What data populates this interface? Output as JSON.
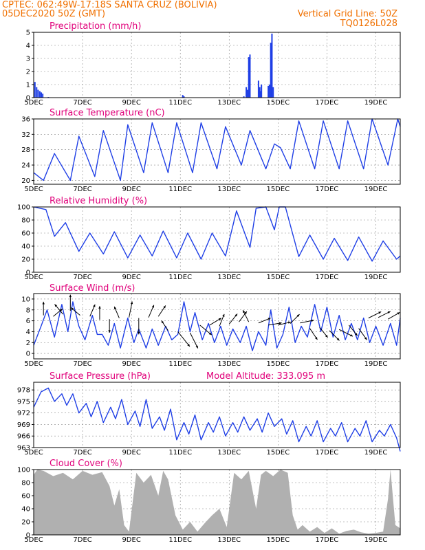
{
  "header": {
    "line1_left": "CPTEC:   062:49W-17:18S  SANTA CRUZ (BOLIVIA)",
    "line2_left": "05DEC2020 50Z (GMT)",
    "line2_right": "Vertical Grid Line: 50Z",
    "line3_right": "TQ0126L028"
  },
  "colors": {
    "header": "#f07000",
    "panel_title": "#e0007a",
    "series": "#1f3fe6",
    "cloud": "#b0b0b0",
    "arrow": "#000000"
  },
  "x_axis": {
    "labels": [
      "5DEC",
      "7DEC",
      "9DEC",
      "11DEC",
      "13DEC",
      "15DEC",
      "17DEC",
      "19DEC"
    ],
    "label_days": [
      0,
      2,
      4,
      6,
      8,
      10,
      12,
      14
    ],
    "range_days": [
      0,
      15
    ]
  },
  "chart_data": [
    {
      "id": "precip",
      "type": "bar",
      "title": "Precipitation (mm/h)",
      "ylim": [
        0,
        5
      ],
      "yticks": [
        0,
        1,
        2,
        3,
        4,
        5
      ],
      "x": [
        0.05,
        0.12,
        0.18,
        0.25,
        0.31,
        0.37,
        0.6,
        6.1,
        6.15,
        8.6,
        8.7,
        8.75,
        8.8,
        8.85,
        9.2,
        9.25,
        9.3,
        9.32,
        9.6,
        9.65,
        9.7,
        9.75,
        9.8
      ],
      "values": [
        1.2,
        0.8,
        0.6,
        0.5,
        0.4,
        0.3,
        0.05,
        0.2,
        0.1,
        0.1,
        0.8,
        0.6,
        3.1,
        3.3,
        1.3,
        0.8,
        0.5,
        1.0,
        0.9,
        1.0,
        4.2,
        4.9,
        0.8
      ]
    },
    {
      "id": "temp",
      "type": "line",
      "title": "Surface Temperature (nC)",
      "ylim": [
        19,
        36
      ],
      "yticks": [
        20,
        24,
        28,
        32,
        36
      ],
      "x": [
        0,
        0.4,
        0.85,
        1.5,
        1.85,
        2.5,
        2.85,
        3.55,
        3.85,
        4.5,
        4.85,
        5.5,
        5.85,
        6.5,
        6.85,
        7.5,
        7.85,
        8.5,
        8.85,
        9.5,
        9.85,
        10.1,
        10.5,
        10.85,
        11.5,
        11.85,
        12.5,
        12.85,
        13.5,
        13.85,
        14.5,
        14.9,
        15.0
      ],
      "values": [
        22,
        20,
        27,
        20,
        31.5,
        21,
        33,
        20,
        34.5,
        22,
        35,
        22,
        35,
        22,
        35,
        23,
        34,
        24,
        33,
        23,
        29.5,
        28.5,
        23,
        35.5,
        23,
        35.5,
        23,
        35.5,
        23,
        36,
        24,
        36,
        34
      ]
    },
    {
      "id": "rh",
      "type": "line",
      "title": "Relative Humidity (%)",
      "ylim": [
        0,
        100
      ],
      "yticks": [
        0,
        20,
        40,
        60,
        80,
        100
      ],
      "x": [
        0,
        0.5,
        0.85,
        1.3,
        1.85,
        2.3,
        2.85,
        3.3,
        3.85,
        4.35,
        4.85,
        5.3,
        5.85,
        6.3,
        6.85,
        7.3,
        7.85,
        8.3,
        8.85,
        9.1,
        9.5,
        9.85,
        10.05,
        10.3,
        10.85,
        11.3,
        11.85,
        12.3,
        12.85,
        13.3,
        13.85,
        14.3,
        14.85,
        15.0
      ],
      "values": [
        100,
        96,
        55,
        76,
        32,
        60,
        28,
        62,
        22,
        57,
        25,
        63,
        22,
        60,
        20,
        60,
        25,
        94,
        38,
        98,
        100,
        65,
        100,
        100,
        24,
        57,
        20,
        52,
        18,
        54,
        17,
        48,
        20,
        25
      ]
    },
    {
      "id": "wind",
      "type": "line",
      "title": "Surface Wind (m/s)",
      "ylim": [
        -1,
        11
      ],
      "yticks": [
        0,
        2,
        4,
        6,
        8,
        10
      ],
      "x": [
        0,
        0.3,
        0.55,
        0.85,
        1.15,
        1.4,
        1.6,
        1.85,
        2.1,
        2.4,
        2.6,
        2.8,
        3.05,
        3.3,
        3.55,
        3.85,
        4.1,
        4.3,
        4.6,
        4.85,
        5.1,
        5.4,
        5.65,
        5.9,
        6.15,
        6.4,
        6.6,
        6.9,
        7.15,
        7.4,
        7.65,
        7.9,
        8.15,
        8.45,
        8.7,
        8.95,
        9.2,
        9.5,
        9.7,
        9.95,
        10.2,
        10.45,
        10.7,
        10.95,
        11.2,
        11.5,
        11.75,
        12.0,
        12.25,
        12.5,
        12.75,
        13.0,
        13.25,
        13.5,
        13.75,
        14.0,
        14.3,
        14.6,
        14.85,
        15.0
      ],
      "values": [
        1.5,
        5,
        8,
        3,
        9,
        4,
        9.5,
        5,
        2.5,
        7,
        3.5,
        3.5,
        1.5,
        5.5,
        1,
        6.5,
        2,
        4.5,
        1,
        4.5,
        1.5,
        5,
        2.5,
        3.5,
        9.5,
        4,
        7.5,
        2.5,
        5.5,
        2,
        5,
        1.5,
        4.5,
        2,
        5,
        0.5,
        4,
        1.5,
        8,
        1,
        3.5,
        8.5,
        2,
        5,
        3,
        9,
        4,
        8.5,
        3,
        7,
        2.5,
        5.5,
        2.5,
        6.5,
        2,
        5,
        1.5,
        5.5,
        1.5,
        6.5
      ]
    },
    {
      "id": "pres",
      "type": "line",
      "title": "Surface Pressure (hPa)",
      "subtitle": "Model Altitude: 333.095 m",
      "ylim": [
        963,
        980
      ],
      "yticks": [
        963,
        966,
        969,
        972,
        975,
        978
      ],
      "x": [
        0,
        0.3,
        0.6,
        0.85,
        1.15,
        1.35,
        1.6,
        1.85,
        2.15,
        2.35,
        2.6,
        2.85,
        3.15,
        3.35,
        3.6,
        3.85,
        4.15,
        4.35,
        4.6,
        4.85,
        5.15,
        5.35,
        5.6,
        5.85,
        6.15,
        6.35,
        6.6,
        6.85,
        7.15,
        7.35,
        7.6,
        7.85,
        8.15,
        8.35,
        8.6,
        8.85,
        9.15,
        9.35,
        9.6,
        9.85,
        10.15,
        10.35,
        10.6,
        10.85,
        11.15,
        11.35,
        11.6,
        11.85,
        12.15,
        12.35,
        12.6,
        12.85,
        13.15,
        13.35,
        13.6,
        13.85,
        14.15,
        14.35,
        14.6,
        14.85,
        15.0
      ],
      "values": [
        973.5,
        977.5,
        978.5,
        975,
        977,
        974,
        977,
        972,
        974.5,
        971,
        975,
        969.5,
        973.5,
        970.5,
        975.5,
        969,
        972.5,
        968.5,
        975.5,
        968,
        971,
        967.5,
        973,
        965,
        969.5,
        966.5,
        971.5,
        965,
        969.5,
        967,
        971,
        966,
        969.5,
        967,
        971,
        967.5,
        970.5,
        967,
        972,
        968.5,
        970.5,
        966.5,
        970,
        964.5,
        968.5,
        966,
        970,
        964.5,
        968,
        966,
        969.5,
        964.5,
        968,
        966,
        970,
        964.5,
        967.5,
        966,
        969,
        965.5,
        962
      ]
    },
    {
      "id": "cloud",
      "type": "area",
      "title": "Cloud Cover (%)",
      "ylim": [
        0,
        100
      ],
      "yticks": [
        0,
        20,
        40,
        60,
        80,
        100
      ],
      "x": [
        0,
        0.15,
        0.4,
        0.8,
        1.2,
        1.6,
        2.0,
        2.4,
        2.8,
        3.1,
        3.3,
        3.5,
        3.7,
        3.9,
        4.2,
        4.5,
        4.8,
        5.1,
        5.3,
        5.5,
        5.8,
        6.1,
        6.4,
        6.7,
        7.0,
        7.3,
        7.6,
        7.9,
        8.2,
        8.5,
        8.8,
        9.1,
        9.3,
        9.5,
        9.8,
        10.1,
        10.4,
        10.6,
        10.8,
        11.0,
        11.3,
        11.6,
        11.9,
        12.2,
        12.5,
        12.8,
        13.1,
        13.4,
        13.7,
        14.0,
        14.3,
        14.5,
        14.6,
        14.8,
        15.0
      ],
      "values": [
        92,
        100,
        98,
        90,
        95,
        85,
        98,
        92,
        96,
        75,
        45,
        70,
        15,
        5,
        95,
        80,
        92,
        60,
        98,
        85,
        30,
        8,
        20,
        5,
        18,
        30,
        40,
        12,
        95,
        85,
        98,
        40,
        92,
        98,
        90,
        100,
        95,
        30,
        8,
        15,
        5,
        12,
        3,
        10,
        2,
        6,
        8,
        4,
        2,
        3,
        5,
        55,
        100,
        15,
        10
      ]
    }
  ],
  "wind_arrows": {
    "x": [
      0.4,
      0.8,
      1.2,
      1.5,
      1.9,
      2.3,
      2.7,
      3.1,
      3.5,
      3.9,
      4.3,
      4.7,
      5.1,
      5.5,
      5.9,
      6.4,
      6.8,
      7.2,
      7.6,
      8.0,
      8.4,
      8.8,
      9.2,
      9.6,
      10.0,
      10.5,
      10.9,
      11.3,
      11.7,
      12.1,
      12.5,
      12.9,
      13.3,
      13.7,
      14.1,
      14.5
    ],
    "y": [
      7,
      6.8,
      7.2,
      7.8,
      7,
      6.8,
      6.2,
      6.3,
      6.5,
      6.6,
      6.5,
      6.6,
      6.8,
      4.2,
      4.0,
      3.8,
      5.2,
      5.2,
      5.0,
      5.4,
      5.8,
      5.8,
      5.6,
      5.2,
      5.2,
      5.5,
      5.6,
      4.6,
      4.8,
      4.2,
      4.4,
      5.2,
      4.6,
      6.5,
      6.6,
      6.3
    ],
    "u": [
      0,
      0.6,
      -0.5,
      0,
      -0.6,
      0.3,
      0,
      0,
      -0.3,
      0.2,
      0,
      0.3,
      0.4,
      -0.4,
      0.8,
      0.5,
      0.6,
      0.5,
      0.2,
      0.4,
      0.3,
      -0.3,
      0.5,
      0.6,
      0.4,
      0.3,
      0.5,
      0.4,
      0.4,
      0.5,
      0.8,
      0.4,
      0.5,
      0.8,
      0.6,
      0.7
    ],
    "v": [
      1,
      0.5,
      0.6,
      1,
      0.5,
      0.7,
      0.8,
      -1,
      0.7,
      1,
      -0.8,
      0.7,
      0.6,
      0.6,
      -1,
      -1,
      -0.5,
      0.3,
      0.5,
      0.5,
      0.4,
      0.6,
      0.2,
      0.1,
      0.1,
      0.3,
      0.1,
      -0.6,
      -0.5,
      -0.5,
      -0.4,
      -0.5,
      -0.7,
      0.4,
      0.3,
      0.4
    ],
    "scale_ms": [
      2.5,
      2.2,
      2.4,
      3,
      2.2,
      2.4,
      2.5,
      2.5,
      2.3,
      3,
      3,
      2.5,
      2.4,
      2.2,
      3.5,
      3.2,
      2.8,
      2.5,
      2.4,
      2.4,
      2.4,
      2.4,
      2.4,
      2.5,
      2.4,
      2.4,
      2.6,
      2.5,
      2.4,
      2.6,
      2.8,
      2.5,
      2.6,
      2.6,
      2.5,
      2.5
    ]
  }
}
